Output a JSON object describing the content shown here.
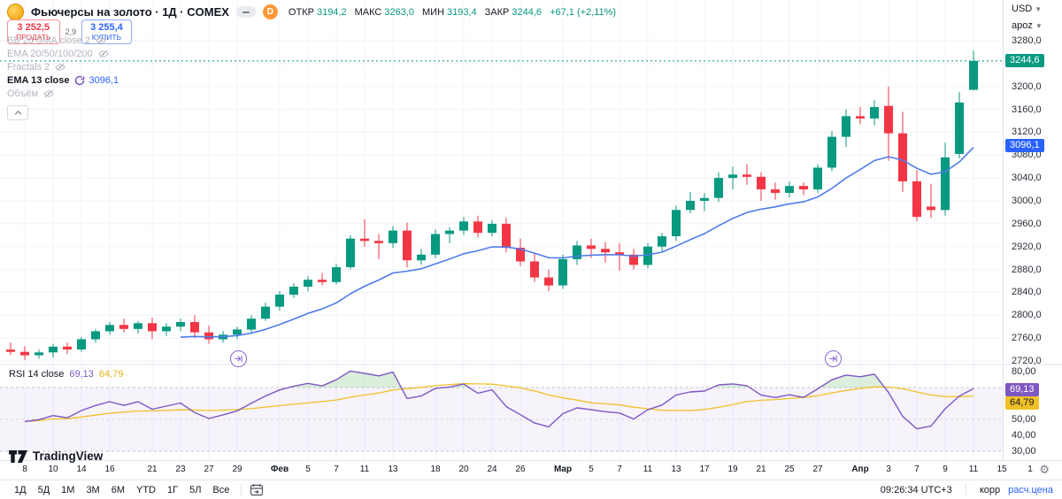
{
  "header": {
    "title": "Фьючерсы на золото · 1Д · COMEX",
    "interval_badge": "D",
    "ohlc": {
      "open_label": "ОТКР",
      "open": "3194,2",
      "high_label": "МАКС",
      "high": "3263,0",
      "low_label": "МИН",
      "low": "3193,4",
      "close_label": "ЗАКР",
      "close": "3244,6",
      "change": "+67,1 (+2,11%)"
    },
    "sell": {
      "price": "3 252,5",
      "label": "ПРОДАТЬ"
    },
    "spread": "2,9",
    "buy": {
      "price": "3 255,4",
      "label": "КУПИТЬ"
    }
  },
  "legend": {
    "rows": [
      {
        "label": "BB 20 SMA close 2",
        "hidden": true
      },
      {
        "label": "EMA 20/50/100/200",
        "hidden": true
      },
      {
        "label": "Fractals 2",
        "hidden": true
      },
      {
        "label": "Объём",
        "hidden": true
      }
    ],
    "ema13": {
      "label": "EMA 13 close",
      "value": "3096,1"
    },
    "rsi": {
      "label": "RSI 14 close",
      "value": "69,13",
      "ma_value": "64,79"
    }
  },
  "axis": {
    "currency": "USD",
    "unit": "apoz",
    "last_price_badge": "3244,6",
    "ema_badge": "3096,1",
    "rsi_badge": "69,13",
    "rsi_ma_badge": "64,79"
  },
  "toolbar": {
    "ranges": [
      "1Д",
      "5Д",
      "1М",
      "3М",
      "6М",
      "YTD",
      "1Г",
      "5Л",
      "Все"
    ]
  },
  "statusbar": {
    "clock": "09:26:34 UTC+3",
    "adj": "корр",
    "settlement": "расч.цена"
  },
  "branding": {
    "logo_text": "TradingView"
  },
  "chart_data": {
    "type": "candlestick",
    "title": "Фьючерсы на золото · 1Д · COMEX",
    "price_axis": {
      "min": 2720,
      "max": 3280,
      "step": 40
    },
    "rsi_axis": {
      "min": 30,
      "max": 80,
      "levels": [
        70,
        50,
        30
      ],
      "ticks": [
        80,
        60,
        50,
        40,
        30
      ]
    },
    "last_price": 3244.6,
    "indicators": {
      "ema_length": 13,
      "ema_final": 3096.1,
      "rsi_length": 14,
      "rsi_final": 69.13,
      "rsi_ma_final": 64.79
    },
    "candles": [
      [
        2740,
        2752,
        2730,
        2736
      ],
      [
        2736,
        2746,
        2722,
        2730
      ],
      [
        2730,
        2740,
        2724,
        2735
      ],
      [
        2735,
        2750,
        2726,
        2745
      ],
      [
        2745,
        2752,
        2732,
        2740
      ],
      [
        2740,
        2762,
        2736,
        2758
      ],
      [
        2758,
        2776,
        2752,
        2772
      ],
      [
        2772,
        2788,
        2766,
        2783
      ],
      [
        2783,
        2794,
        2770,
        2776
      ],
      [
        2776,
        2790,
        2768,
        2786
      ],
      [
        2786,
        2796,
        2758,
        2772
      ],
      [
        2772,
        2786,
        2764,
        2780
      ],
      [
        2780,
        2794,
        2772,
        2788
      ],
      [
        2788,
        2800,
        2760,
        2770
      ],
      [
        2770,
        2782,
        2750,
        2758
      ],
      [
        2758,
        2772,
        2752,
        2766
      ],
      [
        2766,
        2780,
        2758,
        2775
      ],
      [
        2775,
        2800,
        2770,
        2794
      ],
      [
        2794,
        2822,
        2790,
        2815
      ],
      [
        2815,
        2842,
        2808,
        2836
      ],
      [
        2836,
        2856,
        2830,
        2850
      ],
      [
        2850,
        2868,
        2842,
        2862
      ],
      [
        2862,
        2874,
        2852,
        2858
      ],
      [
        2858,
        2890,
        2854,
        2884
      ],
      [
        2884,
        2940,
        2880,
        2934
      ],
      [
        2934,
        2968,
        2920,
        2930
      ],
      [
        2930,
        2942,
        2898,
        2926
      ],
      [
        2926,
        2956,
        2918,
        2948
      ],
      [
        2948,
        2962,
        2884,
        2896
      ],
      [
        2896,
        2916,
        2888,
        2906
      ],
      [
        2906,
        2950,
        2900,
        2942
      ],
      [
        2942,
        2954,
        2926,
        2948
      ],
      [
        2948,
        2972,
        2940,
        2964
      ],
      [
        2964,
        2974,
        2936,
        2944
      ],
      [
        2944,
        2966,
        2938,
        2960
      ],
      [
        2960,
        2970,
        2910,
        2918
      ],
      [
        2918,
        2934,
        2886,
        2894
      ],
      [
        2894,
        2908,
        2858,
        2866
      ],
      [
        2866,
        2880,
        2842,
        2852
      ],
      [
        2852,
        2906,
        2846,
        2898
      ],
      [
        2898,
        2930,
        2888,
        2922
      ],
      [
        2922,
        2934,
        2900,
        2916
      ],
      [
        2916,
        2928,
        2892,
        2910
      ],
      [
        2910,
        2926,
        2878,
        2906
      ],
      [
        2906,
        2916,
        2880,
        2888
      ],
      [
        2888,
        2926,
        2882,
        2920
      ],
      [
        2920,
        2944,
        2912,
        2938
      ],
      [
        2938,
        2992,
        2930,
        2984
      ],
      [
        2984,
        3016,
        2978,
        3000
      ],
      [
        3000,
        3014,
        2982,
        3005
      ],
      [
        3005,
        3050,
        2998,
        3040
      ],
      [
        3040,
        3060,
        3020,
        3046
      ],
      [
        3046,
        3064,
        3028,
        3042
      ],
      [
        3042,
        3050,
        3000,
        3020
      ],
      [
        3020,
        3032,
        3002,
        3014
      ],
      [
        3014,
        3034,
        3006,
        3026
      ],
      [
        3026,
        3032,
        3010,
        3020
      ],
      [
        3020,
        3064,
        3014,
        3058
      ],
      [
        3058,
        3122,
        3052,
        3112
      ],
      [
        3112,
        3160,
        3094,
        3148
      ],
      [
        3148,
        3164,
        3134,
        3144
      ],
      [
        3144,
        3176,
        3132,
        3164
      ],
      [
        3166,
        3200,
        3070,
        3118
      ],
      [
        3118,
        3156,
        3016,
        3034
      ],
      [
        3034,
        3054,
        2964,
        2972
      ],
      [
        2990,
        3030,
        2970,
        2984
      ],
      [
        2984,
        3102,
        2974,
        3076
      ],
      [
        3082,
        3190,
        3074,
        3172
      ],
      [
        3194.2,
        3263.0,
        3193.4,
        3244.6
      ]
    ],
    "time_ticks": [
      [
        "8",
        1,
        0
      ],
      [
        "10",
        3,
        0
      ],
      [
        "14",
        5,
        0
      ],
      [
        "16",
        7,
        0
      ],
      [
        "21",
        10,
        0
      ],
      [
        "23",
        12,
        0
      ],
      [
        "27",
        14,
        0
      ],
      [
        "29",
        16,
        0
      ],
      [
        "Фев",
        19,
        1
      ],
      [
        "5",
        21,
        0
      ],
      [
        "7",
        23,
        0
      ],
      [
        "11",
        25,
        0
      ],
      [
        "13",
        27,
        0
      ],
      [
        "18",
        30,
        0
      ],
      [
        "20",
        32,
        0
      ],
      [
        "24",
        34,
        0
      ],
      [
        "26",
        36,
        0
      ],
      [
        "Мар",
        39,
        1
      ],
      [
        "5",
        41,
        0
      ],
      [
        "7",
        43,
        0
      ],
      [
        "11",
        45,
        0
      ],
      [
        "13",
        47,
        0
      ],
      [
        "17",
        49,
        0
      ],
      [
        "19",
        51,
        0
      ],
      [
        "21",
        53,
        0
      ],
      [
        "25",
        55,
        0
      ],
      [
        "27",
        57,
        0
      ],
      [
        "Апр",
        60,
        1
      ],
      [
        "3",
        62,
        0
      ],
      [
        "7",
        64,
        0
      ],
      [
        "9",
        66,
        0
      ],
      [
        "11",
        68,
        0
      ],
      [
        "15",
        70,
        0
      ],
      [
        "1",
        72,
        0
      ]
    ],
    "markers": [
      {
        "i": 16
      },
      {
        "i": 58
      }
    ],
    "colors": {
      "up": "#089981",
      "down": "#f23645",
      "ema": "#4f7bea",
      "rsi": "#7e57c2",
      "rsi_ma": "#f0c028",
      "price_line": "#089981",
      "band_fill": "rgba(126,87,194,0.07)",
      "overbought_fill": "rgba(76,175,80,0.2)",
      "grid": "#f0f3fa"
    }
  }
}
